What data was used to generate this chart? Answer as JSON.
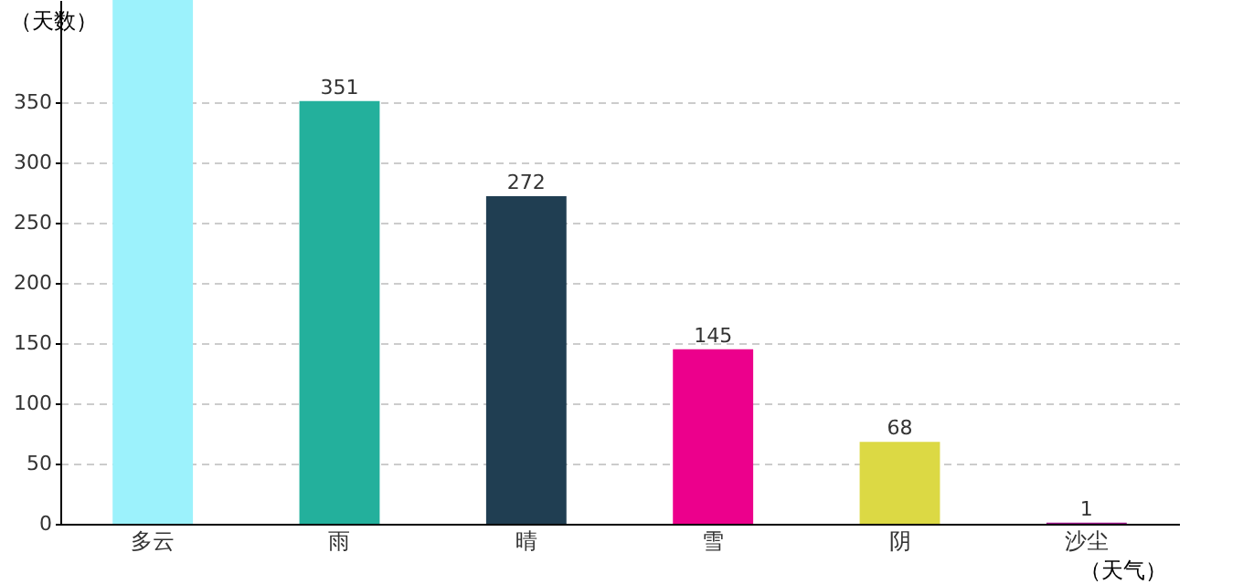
{
  "chart_data": {
    "type": "bar",
    "xlabel": "（天气）",
    "ylabel": "（天数）",
    "categories": [
      "多云",
      "雨",
      "晴",
      "雪",
      "阴",
      "沙尘"
    ],
    "values": [
      435,
      351,
      272,
      145,
      68,
      1
    ],
    "value_labels": [
      null,
      "351",
      "272",
      "145",
      "68",
      "1"
    ],
    "colors": [
      "#9cf2fc",
      "#23b09c",
      "#203e52",
      "#ec008c",
      "#dcd944",
      "#a0188f"
    ],
    "ylim": [
      0,
      435
    ],
    "yticks": [
      0,
      50,
      100,
      150,
      200,
      250,
      300,
      350
    ],
    "grid": "y"
  }
}
